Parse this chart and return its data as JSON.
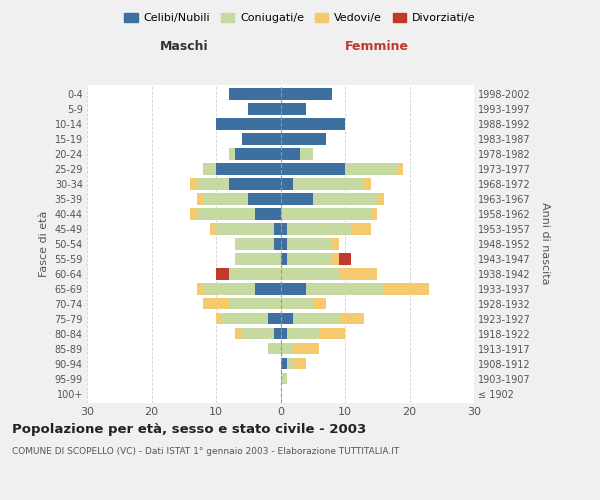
{
  "age_groups": [
    "100+",
    "95-99",
    "90-94",
    "85-89",
    "80-84",
    "75-79",
    "70-74",
    "65-69",
    "60-64",
    "55-59",
    "50-54",
    "45-49",
    "40-44",
    "35-39",
    "30-34",
    "25-29",
    "20-24",
    "15-19",
    "10-14",
    "5-9",
    "0-4"
  ],
  "birth_years": [
    "≤ 1902",
    "1903-1907",
    "1908-1912",
    "1913-1917",
    "1918-1922",
    "1923-1927",
    "1928-1932",
    "1933-1937",
    "1938-1942",
    "1943-1947",
    "1948-1952",
    "1953-1957",
    "1958-1962",
    "1963-1967",
    "1968-1972",
    "1973-1977",
    "1978-1982",
    "1983-1987",
    "1988-1992",
    "1993-1997",
    "1998-2002"
  ],
  "males": {
    "celibi": [
      0,
      0,
      0,
      0,
      1,
      2,
      0,
      4,
      0,
      0,
      1,
      1,
      4,
      5,
      8,
      10,
      7,
      6,
      10,
      5,
      8
    ],
    "coniugati": [
      0,
      0,
      0,
      2,
      5,
      7,
      8,
      8,
      8,
      7,
      6,
      9,
      9,
      7,
      5,
      2,
      1,
      0,
      0,
      0,
      0
    ],
    "vedovi": [
      0,
      0,
      0,
      0,
      1,
      1,
      4,
      1,
      0,
      0,
      0,
      1,
      1,
      1,
      1,
      0,
      0,
      0,
      0,
      0,
      0
    ],
    "divorziati": [
      0,
      0,
      0,
      0,
      0,
      0,
      0,
      0,
      2,
      0,
      0,
      0,
      0,
      0,
      0,
      0,
      0,
      0,
      0,
      0,
      0
    ]
  },
  "females": {
    "nubili": [
      0,
      0,
      1,
      0,
      1,
      2,
      0,
      4,
      0,
      1,
      1,
      1,
      0,
      5,
      2,
      10,
      3,
      7,
      10,
      4,
      8
    ],
    "coniugate": [
      0,
      1,
      1,
      2,
      5,
      7,
      5,
      12,
      9,
      7,
      7,
      10,
      14,
      10,
      11,
      8,
      2,
      0,
      0,
      0,
      0
    ],
    "vedove": [
      0,
      0,
      2,
      4,
      4,
      4,
      2,
      7,
      6,
      1,
      1,
      3,
      1,
      1,
      1,
      1,
      0,
      0,
      0,
      0,
      0
    ],
    "divorziate": [
      0,
      0,
      0,
      0,
      0,
      0,
      0,
      0,
      0,
      2,
      0,
      0,
      0,
      0,
      0,
      0,
      0,
      0,
      0,
      0,
      0
    ]
  },
  "colors": {
    "celibi": "#3d6fa0",
    "coniugati": "#c5d9a0",
    "vedovi": "#f5c96e",
    "divorziati": "#c0392b"
  },
  "title": "Popolazione per età, sesso e stato civile - 2003",
  "subtitle": "COMUNE DI SCOPELLO (VC) - Dati ISTAT 1° gennaio 2003 - Elaborazione TUTTITALIA.IT",
  "xlabel_left": "Maschi",
  "xlabel_right": "Femmine",
  "ylabel_left": "Fasce di età",
  "ylabel_right": "Anni di nascita",
  "xlim": 30,
  "background_color": "#f0f0f0",
  "plot_bg": "#ffffff",
  "legend_labels": [
    "Celibi/Nubili",
    "Coniugati/e",
    "Vedovi/e",
    "Divorziati/e"
  ]
}
